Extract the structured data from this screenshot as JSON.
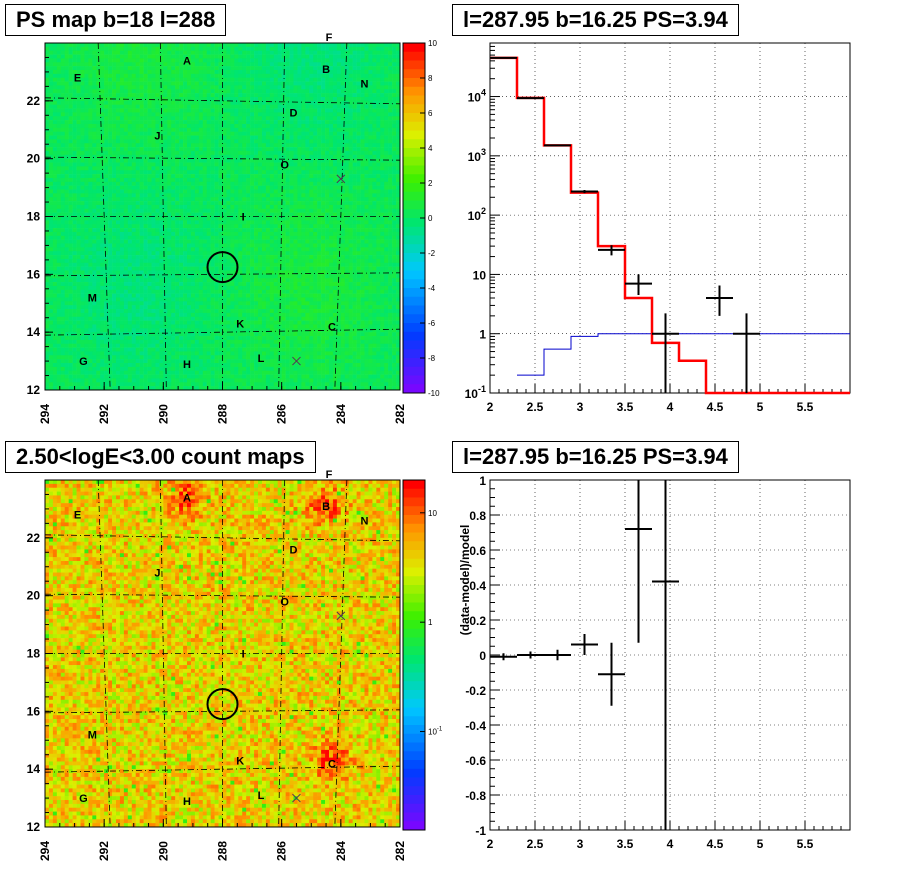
{
  "panels": {
    "psmap": {
      "title": "PS map b=18 l=288"
    },
    "countmap": {
      "title": "2.50<logE<3.00 count maps"
    },
    "spectrum": {
      "title": "l=287.95 b=16.25 PS=3.94"
    },
    "residual": {
      "title": "l=287.95 b=16.25 PS=3.94"
    }
  },
  "colors": {
    "data": "#000000",
    "model": "#ff0000",
    "background": "#0000cc",
    "circle": "#000000",
    "grid": "#000000"
  },
  "chart_data": [
    {
      "type": "heatmap",
      "name_hint": "psmap",
      "xlim": [
        294,
        282
      ],
      "ylim": [
        12,
        24
      ],
      "x_ticks": [
        "294",
        "292",
        "290",
        "288",
        "286",
        "284",
        "282"
      ],
      "y_ticks": [
        "12",
        "14",
        "16",
        "18",
        "20",
        "22"
      ],
      "colorbar_range": [
        -10,
        10
      ],
      "colorbar_ticks": [
        "10",
        "8",
        "6",
        "4",
        "2",
        "0",
        "-2",
        "-4",
        "-6",
        "-8",
        "-10"
      ],
      "circle_center": [
        288,
        16.25
      ],
      "crosses": [
        [
          284,
          19.3
        ],
        [
          285.5,
          13.0
        ]
      ],
      "labels": [
        {
          "text": "A",
          "l": 289.2,
          "b": 23.4
        },
        {
          "text": "B",
          "l": 284.5,
          "b": 23.1
        },
        {
          "text": "C",
          "l": 284.3,
          "b": 14.2
        },
        {
          "text": "D",
          "l": 285.6,
          "b": 21.6
        },
        {
          "text": "E",
          "l": 292.9,
          "b": 22.8
        },
        {
          "text": "F",
          "l": 284.4,
          "b": 24.2
        },
        {
          "text": "G",
          "l": 292.7,
          "b": 13.0
        },
        {
          "text": "H",
          "l": 289.2,
          "b": 12.9
        },
        {
          "text": "I",
          "l": 287.3,
          "b": 18.0
        },
        {
          "text": "J",
          "l": 290.2,
          "b": 20.8
        },
        {
          "text": "K",
          "l": 287.4,
          "b": 14.3
        },
        {
          "text": "L",
          "l": 286.7,
          "b": 13.1
        },
        {
          "text": "M",
          "l": 292.4,
          "b": 15.2
        },
        {
          "text": "N",
          "l": 283.2,
          "b": 22.6
        },
        {
          "text": "O",
          "l": 285.9,
          "b": 19.8
        }
      ]
    },
    {
      "type": "line",
      "name_hint": "spectrum",
      "xlim": [
        2,
        6
      ],
      "ylim": [
        0.1,
        80000
      ],
      "log_y": true,
      "grid": true,
      "x_ticks": [
        "2",
        "2.5",
        "3",
        "3.5",
        "4",
        "4.5",
        "5",
        "5.5"
      ],
      "y_ticks": [
        "10^{-1}",
        "1",
        "10",
        "10^{2}",
        "10^{3}",
        "10^{4}"
      ],
      "model_steps": {
        "edges": [
          2,
          2.3,
          2.6,
          2.9,
          3.2,
          3.5,
          3.8,
          4.1,
          4.4,
          6
        ],
        "values": [
          45000,
          9500,
          1500,
          240,
          30,
          4,
          0.7,
          0.35,
          0.1
        ]
      },
      "background_steps": {
        "edges": [
          2.3,
          2.6,
          2.9,
          3.2,
          3.5,
          3.8,
          4.1,
          6
        ],
        "values": [
          0.2,
          0.55,
          0.9,
          1.0,
          1.0,
          1.0,
          1.0
        ]
      },
      "data_points": [
        {
          "x": 2.15,
          "y": 45000,
          "xerr": 0.15,
          "ylo": 44000,
          "yhi": 46000
        },
        {
          "x": 2.45,
          "y": 9400,
          "xerr": 0.15,
          "ylo": 9200,
          "yhi": 9600
        },
        {
          "x": 2.75,
          "y": 1500,
          "xerr": 0.15,
          "ylo": 1450,
          "yhi": 1550
        },
        {
          "x": 3.05,
          "y": 250,
          "xerr": 0.15,
          "ylo": 235,
          "yhi": 265
        },
        {
          "x": 3.35,
          "y": 26,
          "xerr": 0.15,
          "ylo": 21,
          "yhi": 31
        },
        {
          "x": 3.65,
          "y": 7,
          "xerr": 0.15,
          "ylo": 4.5,
          "yhi": 10
        },
        {
          "x": 3.95,
          "y": 1,
          "xerr": 0.15,
          "ylo": 0.1,
          "yhi": 2.2
        },
        {
          "x": 4.55,
          "y": 4,
          "xerr": 0.15,
          "ylo": 2,
          "yhi": 6.5
        },
        {
          "x": 4.85,
          "y": 1,
          "xerr": 0.15,
          "ylo": 0.1,
          "yhi": 2.2
        }
      ]
    },
    {
      "type": "heatmap",
      "name_hint": "countmap",
      "xlim": [
        294,
        282
      ],
      "ylim": [
        12,
        24
      ],
      "x_ticks": [
        "294",
        "292",
        "290",
        "288",
        "286",
        "284",
        "282"
      ],
      "y_ticks": [
        "12",
        "14",
        "16",
        "18",
        "20",
        "22"
      ],
      "colorbar_log": true,
      "colorbar_ticks": [
        "10",
        "1",
        "10^{-1}"
      ],
      "circle_center": [
        288,
        16.25
      ],
      "crosses": [
        [
          284,
          19.3
        ],
        [
          285.5,
          13.0
        ]
      ]
    },
    {
      "type": "scatter",
      "name_hint": "residual",
      "xlim": [
        2,
        6
      ],
      "ylim": [
        -1,
        1
      ],
      "grid": true,
      "ylabel": "(data-model)/model",
      "x_ticks": [
        "2",
        "2.5",
        "3",
        "3.5",
        "4",
        "4.5",
        "5",
        "5.5"
      ],
      "y_ticks": [
        "-1",
        "-0.8",
        "-0.6",
        "-0.4",
        "-0.2",
        "0",
        "0.2",
        "0.4",
        "0.6",
        "0.8",
        "1"
      ],
      "points": [
        {
          "x": 2.15,
          "y": -0.01,
          "xerr": 0.15,
          "ylo": -0.03,
          "yhi": 0.01
        },
        {
          "x": 2.45,
          "y": 0.0,
          "xerr": 0.15,
          "ylo": -0.02,
          "yhi": 0.02
        },
        {
          "x": 2.75,
          "y": 0.0,
          "xerr": 0.15,
          "ylo": -0.03,
          "yhi": 0.03
        },
        {
          "x": 3.05,
          "y": 0.06,
          "xerr": 0.15,
          "ylo": 0.0,
          "yhi": 0.12
        },
        {
          "x": 3.35,
          "y": -0.11,
          "xerr": 0.15,
          "ylo": -0.29,
          "yhi": 0.07
        },
        {
          "x": 3.65,
          "y": 0.72,
          "xerr": 0.15,
          "ylo": 0.07,
          "yhi": 1.0
        },
        {
          "x": 3.95,
          "y": 0.42,
          "xerr": 0.15,
          "ylo": -1.0,
          "yhi": 1.0
        }
      ]
    }
  ]
}
